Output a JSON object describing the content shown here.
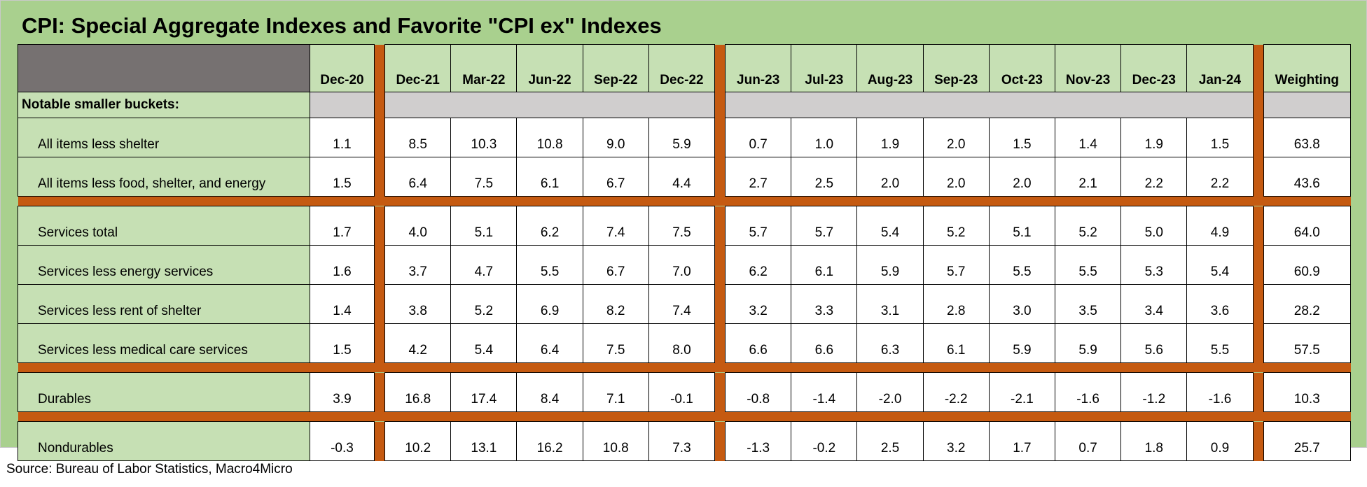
{
  "title": "CPI: Special Aggregate Indexes and Favorite \"CPI ex\" Indexes",
  "source": "Source: Bureau of Labor Statistics, Macro4Micro",
  "columns": [
    "Dec-20",
    "Dec-21",
    "Mar-22",
    "Jun-22",
    "Sep-22",
    "Dec-22",
    "Jun-23",
    "Jul-23",
    "Aug-23",
    "Sep-23",
    "Oct-23",
    "Nov-23",
    "Dec-23",
    "Jan-24",
    "Weighting"
  ],
  "section_label": "Notable smaller buckets:",
  "rows": [
    {
      "label": "All items less shelter",
      "values": [
        "1.1",
        "8.5",
        "10.3",
        "10.8",
        "9.0",
        "5.9",
        "0.7",
        "1.0",
        "1.9",
        "2.0",
        "1.5",
        "1.4",
        "1.9",
        "1.5",
        "63.8"
      ]
    },
    {
      "label": "All items less food, shelter, and energy",
      "values": [
        "1.5",
        "6.4",
        "7.5",
        "6.1",
        "6.7",
        "4.4",
        "2.7",
        "2.5",
        "2.0",
        "2.0",
        "2.0",
        "2.1",
        "2.2",
        "2.2",
        "43.6"
      ]
    },
    {
      "label": "Services total",
      "values": [
        "1.7",
        "4.0",
        "5.1",
        "6.2",
        "7.4",
        "7.5",
        "5.7",
        "5.7",
        "5.4",
        "5.2",
        "5.1",
        "5.2",
        "5.0",
        "4.9",
        "64.0"
      ]
    },
    {
      "label": "Services less energy services",
      "values": [
        "1.6",
        "3.7",
        "4.7",
        "5.5",
        "6.7",
        "7.0",
        "6.2",
        "6.1",
        "5.9",
        "5.7",
        "5.5",
        "5.5",
        "5.3",
        "5.4",
        "60.9"
      ]
    },
    {
      "label": "Services less rent of shelter",
      "values": [
        "1.4",
        "3.8",
        "5.2",
        "6.9",
        "8.2",
        "7.4",
        "3.2",
        "3.3",
        "3.1",
        "2.8",
        "3.0",
        "3.5",
        "3.4",
        "3.6",
        "28.2"
      ]
    },
    {
      "label": "Services less medical care services",
      "values": [
        "1.5",
        "4.2",
        "5.4",
        "6.4",
        "7.5",
        "8.0",
        "6.6",
        "6.6",
        "6.3",
        "6.1",
        "5.9",
        "5.9",
        "5.6",
        "5.5",
        "57.5"
      ]
    },
    {
      "label": "Durables",
      "values": [
        "3.9",
        "16.8",
        "17.4",
        "8.4",
        "7.1",
        "-0.1",
        "-0.8",
        "-1.4",
        "-2.0",
        "-2.2",
        "-2.1",
        "-1.6",
        "-1.2",
        "-1.6",
        "10.3"
      ]
    },
    {
      "label": "Nondurables",
      "values": [
        "-0.3",
        "10.2",
        "13.1",
        "16.2",
        "10.8",
        "7.3",
        "-1.3",
        "-0.2",
        "2.5",
        "3.2",
        "1.7",
        "0.7",
        "1.8",
        "0.9",
        "25.7"
      ]
    }
  ],
  "colors": {
    "panel_bg": "#a9d08e",
    "header_bg": "#c6e0b4",
    "separator": "#c55a11",
    "corner": "#767171",
    "notable_grey": "#d0cece"
  }
}
